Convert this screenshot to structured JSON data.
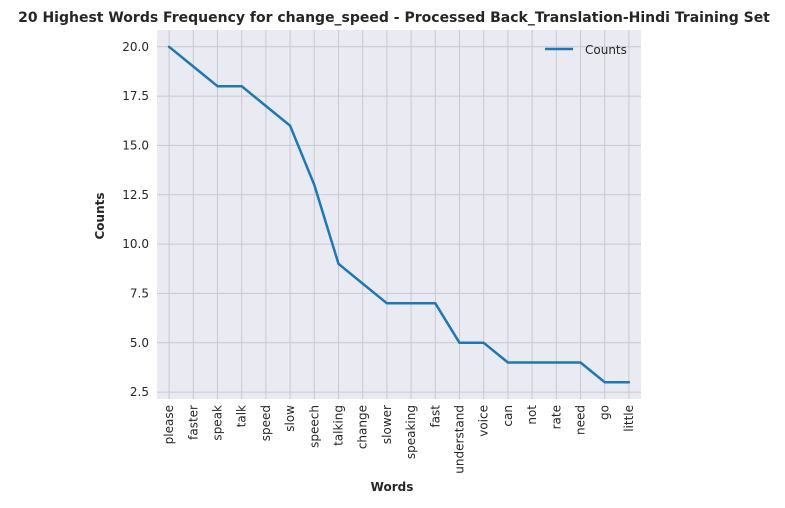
{
  "chart_data": {
    "type": "line",
    "title": "20 Highest Words Frequency for change_speed - Processed Back_Translation-Hindi Training Set",
    "xlabel": "Words",
    "ylabel": "Counts",
    "categories": [
      "please",
      "faster",
      "speak",
      "talk",
      "speed",
      "slow",
      "speech",
      "talking",
      "change",
      "slower",
      "speaking",
      "fast",
      "understand",
      "voice",
      "can",
      "not",
      "rate",
      "need",
      "go",
      "little"
    ],
    "series": [
      {
        "name": "Counts",
        "values": [
          20,
          19,
          18,
          18,
          17,
          16,
          13,
          9,
          8,
          7,
          7,
          7,
          5,
          5,
          4,
          4,
          4,
          4,
          3,
          3
        ]
      }
    ],
    "ylim": [
      2.15,
      20.85
    ],
    "yticks": [
      2.5,
      5.0,
      7.5,
      10.0,
      12.5,
      15.0,
      17.5,
      20.0
    ],
    "ytick_labels": [
      "2.5",
      "5.0",
      "7.5",
      "10.0",
      "12.5",
      "15.0",
      "17.5",
      "20.0"
    ],
    "grid": true,
    "legend_placement": "top-right",
    "colors": {
      "line": "#1f77b4",
      "plot_background": "#eaeaf2",
      "grid": "#c8c8d0",
      "text": "#262626"
    }
  }
}
